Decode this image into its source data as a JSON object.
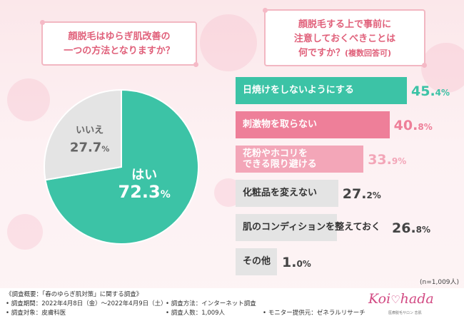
{
  "question_left": [
    "顔脱毛はゆらぎ肌改善の",
    "一つの方法となりますか？"
  ],
  "question_right": [
    "顔脱毛する上で事前に",
    "注意しておくべきことは",
    "何ですか？"
  ],
  "question_right_note": "(複数回答可)",
  "n_note": "(n=1,009人)",
  "colors": {
    "teal": "#3cc3a6",
    "pink_dark": "#ee7f99",
    "pink_light": "#f3a6b8",
    "gray": "#e4e4e4",
    "title": "#e0607a"
  },
  "chart_data": [
    {
      "type": "pie",
      "categories": [
        "はい",
        "いいえ"
      ],
      "values": [
        72.3,
        27.7
      ],
      "value_labels": [
        "72.3",
        "27.7"
      ],
      "unit": "%"
    },
    {
      "type": "bar",
      "orientation": "horizontal",
      "categories": [
        [
          "日焼けをしないようにする"
        ],
        [
          "刺激物を取らない"
        ],
        [
          "花粉やホコリを",
          "できる限り避ける"
        ],
        [
          "化粧品を変えない"
        ],
        [
          "肌のコンディションを整えておく"
        ],
        [
          "その他"
        ]
      ],
      "values": [
        45.4,
        40.8,
        33.9,
        27.2,
        26.8,
        1.0
      ],
      "value_labels": [
        [
          "45.",
          "4%"
        ],
        [
          "40.",
          "8%"
        ],
        [
          "33.",
          "9%"
        ],
        [
          "27.",
          "2%"
        ],
        [
          "26.",
          "8%"
        ],
        [
          "1.",
          "0%"
        ]
      ],
      "unit": "%"
    }
  ],
  "footer": {
    "title": "《調査概要：「春のゆらぎ肌対策」に関する調査》",
    "period": "• 調査期間：2022年4月8日（金）〜2022年4月9日（土）",
    "target": "• 調査対象：皮膚科医",
    "method": "• 調査方法：インターネット調査",
    "count": "• 調査人数：1,009人",
    "provider": "• モニター提供元：ゼネラルリサーチ"
  },
  "logo": {
    "left": "Koi",
    "right": "hada",
    "sub": "医療脱毛サロン 恋肌"
  }
}
